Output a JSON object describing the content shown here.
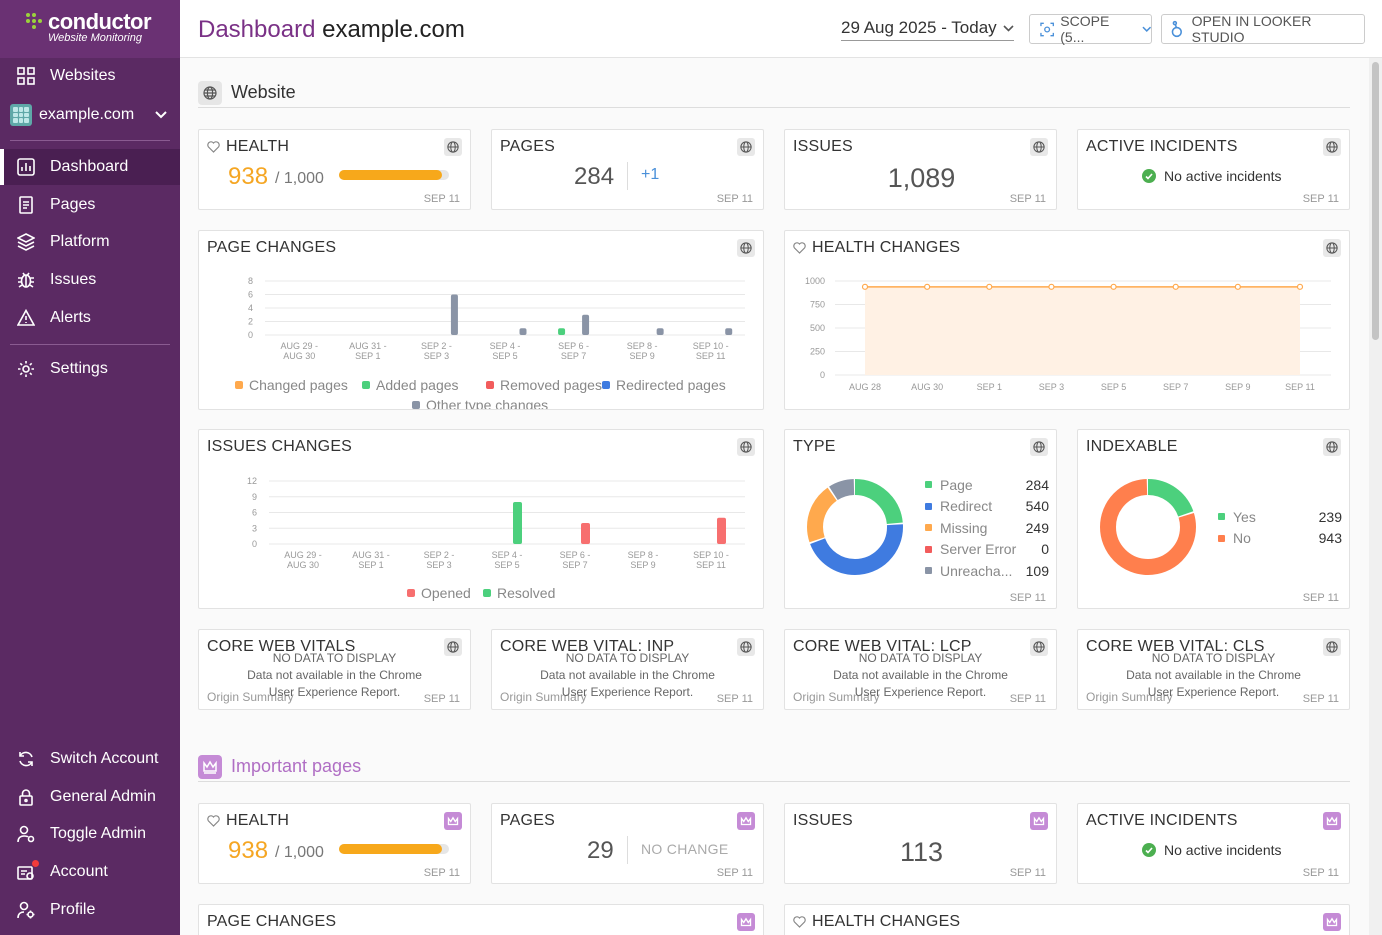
{
  "app": {
    "logo_name": "conductor",
    "logo_sub": "Website Monitoring",
    "colors": {
      "sidebar": "#5b2a63",
      "accent": "#7a3186",
      "health": "#f5a623",
      "ok": "#4caf50"
    }
  },
  "sidebar": {
    "websites_label": "Websites",
    "site": "example.com",
    "items": [
      {
        "label": "Dashboard",
        "icon": "dashboard-icon"
      },
      {
        "label": "Pages",
        "icon": "pages-icon"
      },
      {
        "label": "Platform",
        "icon": "layers-icon"
      },
      {
        "label": "Issues",
        "icon": "bug-icon"
      },
      {
        "label": "Alerts",
        "icon": "alert-icon"
      },
      {
        "label": "Settings",
        "icon": "gear-icon"
      }
    ],
    "bottom": [
      {
        "label": "Switch Account",
        "icon": "switch-icon"
      },
      {
        "label": "General Admin",
        "icon": "lock-icon"
      },
      {
        "label": "Toggle Admin",
        "icon": "toggle-admin-icon"
      },
      {
        "label": "Account",
        "icon": "account-icon"
      },
      {
        "label": "Profile",
        "icon": "profile-icon"
      }
    ]
  },
  "header": {
    "title_prefix": "Dashboard",
    "title_site": "example.com",
    "date": "29 Aug 2025 - Today",
    "scope": "SCOPE (5...",
    "looker": "OPEN IN LOOKER STUDIO"
  },
  "website": {
    "section_title": "Website",
    "health": {
      "title": "HEALTH",
      "value": "938",
      "max": "/ 1,000",
      "fraction": 0.938,
      "date": "SEP 11"
    },
    "pages": {
      "title": "PAGES",
      "value": "284",
      "delta": "+1",
      "date": "SEP 11"
    },
    "issues": {
      "title": "ISSUES",
      "value": "1,089",
      "date": "SEP 11"
    },
    "incidents": {
      "title": "ACTIVE INCIDENTS",
      "text": "No active incidents",
      "date": "SEP 11"
    },
    "page_changes": {
      "title": "PAGE CHANGES"
    },
    "health_changes": {
      "title": "HEALTH CHANGES"
    },
    "issues_changes": {
      "title": "ISSUES CHANGES"
    },
    "type": {
      "title": "TYPE",
      "date": "SEP 11",
      "rows": [
        {
          "label": "Page",
          "value": "284",
          "color": "#4cd07d"
        },
        {
          "label": "Redirect",
          "value": "540",
          "color": "#3f7be0"
        },
        {
          "label": "Missing",
          "value": "249",
          "color": "#ffa94d"
        },
        {
          "label": "Server Error",
          "value": "0",
          "color": "#f25c5c"
        },
        {
          "label": "Unreacha...",
          "value": "109",
          "color": "#8a94a6"
        }
      ]
    },
    "indexable": {
      "title": "INDEXABLE",
      "date": "SEP 11",
      "rows": [
        {
          "label": "Yes",
          "value": "239",
          "color": "#4cd07d"
        },
        {
          "label": "No",
          "value": "943",
          "color": "#ff7f4d"
        }
      ]
    },
    "cwv": [
      {
        "title": "CORE WEB VITALS",
        "nodata": "NO DATA TO DISPLAY",
        "msg1": "Data not available in the Chrome",
        "msg2": "User Experience Report.",
        "origin": "Origin Summary",
        "date": "SEP 11"
      },
      {
        "title": "CORE WEB VITAL: INP",
        "nodata": "NO DATA TO DISPLAY",
        "msg1": "Data not available in the Chrome",
        "msg2": "User Experience Report.",
        "origin": "Origin Summary",
        "date": "SEP 11"
      },
      {
        "title": "CORE WEB VITAL: LCP",
        "nodata": "NO DATA TO DISPLAY",
        "msg1": "Data not available in the Chrome",
        "msg2": "User Experience Report.",
        "origin": "Origin Summary",
        "date": "SEP 11"
      },
      {
        "title": "CORE WEB VITAL: CLS",
        "nodata": "NO DATA TO DISPLAY",
        "msg1": "Data not available in the Chrome",
        "msg2": "User Experience Report.",
        "origin": "Origin Summary",
        "date": "SEP 11"
      }
    ]
  },
  "important": {
    "section_title": "Important pages",
    "health": {
      "title": "HEALTH",
      "value": "938",
      "max": "/ 1,000",
      "fraction": 0.938,
      "date": "SEP 11"
    },
    "pages": {
      "title": "PAGES",
      "value": "29",
      "delta": "NO CHANGE",
      "date": "SEP 11"
    },
    "issues": {
      "title": "ISSUES",
      "value": "113",
      "date": "SEP 11"
    },
    "incidents": {
      "title": "ACTIVE INCIDENTS",
      "text": "No active incidents",
      "date": "SEP 11"
    },
    "page_changes": {
      "title": "PAGE CHANGES"
    },
    "health_changes": {
      "title": "HEALTH CHANGES"
    }
  },
  "chart_data": [
    {
      "type": "bar",
      "name": "page-changes",
      "categories": [
        "AUG 29 - AUG 30",
        "AUG 31 - SEP 1",
        "SEP 2 - SEP 3",
        "SEP 4 - SEP 5",
        "SEP 6 - SEP 7",
        "SEP 8 - SEP 9",
        "SEP 10 - SEP 11"
      ],
      "tick_labels": [
        [
          "AUG 29 -",
          "AUG 30"
        ],
        [
          "AUG 31 -",
          "SEP 1"
        ],
        [
          "SEP 2 -",
          "SEP 3"
        ],
        [
          "SEP 4 -",
          "SEP 5"
        ],
        [
          "SEP 6 -",
          "SEP 7"
        ],
        [
          "SEP 8 -",
          "SEP 9"
        ],
        [
          "SEP 10 -",
          "SEP 11"
        ]
      ],
      "yticks": [
        0,
        2,
        4,
        6,
        8
      ],
      "ylim": [
        0,
        8
      ],
      "series": [
        {
          "name": "Changed pages",
          "color": "#ffa94d",
          "values": [
            0,
            0,
            0,
            0,
            0,
            0,
            0
          ]
        },
        {
          "name": "Added pages",
          "color": "#4cd07d",
          "values": [
            0,
            0,
            0,
            0,
            1,
            0,
            0
          ]
        },
        {
          "name": "Removed pages",
          "color": "#f25c5c",
          "values": [
            0,
            0,
            0,
            0,
            0,
            0,
            0
          ]
        },
        {
          "name": "Redirected pages",
          "color": "#3f7be0",
          "values": [
            0,
            0,
            0,
            0,
            0,
            0,
            0
          ]
        },
        {
          "name": "Other type changes",
          "color": "#8a94a6",
          "values": [
            0,
            0,
            6,
            1,
            3,
            1,
            1
          ]
        }
      ]
    },
    {
      "type": "area",
      "name": "health-changes",
      "x": [
        "AUG 28",
        "AUG 30",
        "SEP 1",
        "SEP 3",
        "SEP 5",
        "SEP 7",
        "SEP 9",
        "SEP 11"
      ],
      "xticks": [
        "AUG 28",
        "AUG 30",
        "SEP 1",
        "SEP 3",
        "SEP 5",
        "SEP 7",
        "SEP 9",
        "SEP 11"
      ],
      "yticks": [
        0,
        250,
        500,
        750,
        1000
      ],
      "ylim": [
        0,
        1000
      ],
      "series": [
        {
          "color": "#ffa94d",
          "values": [
            938,
            938,
            938,
            938,
            938,
            938,
            938,
            938
          ]
        }
      ]
    },
    {
      "type": "bar",
      "name": "issues-changes",
      "categories": [
        "AUG 29 - AUG 30",
        "AUG 31 - SEP 1",
        "SEP 2 - SEP 3",
        "SEP 4 - SEP 5",
        "SEP 6 - SEP 7",
        "SEP 8 - SEP 9",
        "SEP 10 - SEP 11"
      ],
      "tick_labels": [
        [
          "AUG 29 -",
          "AUG 30"
        ],
        [
          "AUG 31 -",
          "SEP 1"
        ],
        [
          "SEP 2 -",
          "SEP 3"
        ],
        [
          "SEP 4 -",
          "SEP 5"
        ],
        [
          "SEP 6 -",
          "SEP 7"
        ],
        [
          "SEP 8 -",
          "SEP 9"
        ],
        [
          "SEP 10 -",
          "SEP 11"
        ]
      ],
      "yticks": [
        0,
        3,
        6,
        9,
        12
      ],
      "ylim": [
        0,
        12
      ],
      "series": [
        {
          "name": "Opened",
          "color": "#f76f6f",
          "values": [
            0,
            0,
            0,
            0,
            4,
            0,
            5
          ]
        },
        {
          "name": "Resolved",
          "color": "#4cd07d",
          "values": [
            0,
            0,
            0,
            8,
            0,
            0,
            0
          ]
        }
      ]
    },
    {
      "type": "pie",
      "name": "type",
      "categories": [
        "Page",
        "Redirect",
        "Missing",
        "Server Error",
        "Unreacha..."
      ],
      "values": [
        284,
        540,
        249,
        0,
        109
      ],
      "colors": [
        "#4cd07d",
        "#3f7be0",
        "#ffa94d",
        "#f25c5c",
        "#8a94a6"
      ]
    },
    {
      "type": "pie",
      "name": "indexable",
      "categories": [
        "Yes",
        "No"
      ],
      "values": [
        239,
        943
      ],
      "colors": [
        "#4cd07d",
        "#ff7f4d"
      ]
    }
  ]
}
